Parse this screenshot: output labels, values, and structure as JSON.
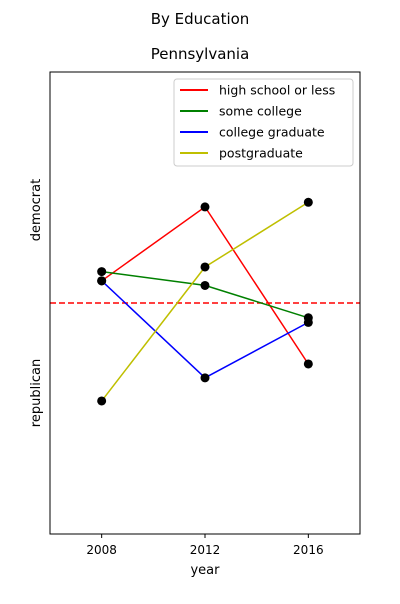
{
  "chart_data": {
    "type": "line",
    "suptitle": "By Education",
    "title": "Pennsylvania",
    "xlabel": "year",
    "ylabel_top": "democrat",
    "ylabel_bottom": "republican",
    "x": [
      2008,
      2012,
      2016
    ],
    "xticks": [
      "2008",
      "2012",
      "2016"
    ],
    "xlim": [
      2006,
      2018
    ],
    "ylim": [
      -0.25,
      0.25
    ],
    "reference_line": {
      "y": 0,
      "color": "#ff0000",
      "style": "dashed"
    },
    "legend_position": "upper-right",
    "grid": false,
    "series": [
      {
        "name": "high school or less",
        "color": "#ff0000",
        "values": [
          0.024,
          0.104,
          -0.066
        ]
      },
      {
        "name": "some college",
        "color": "#008000",
        "values": [
          0.034,
          0.019,
          -0.016
        ]
      },
      {
        "name": "college graduate",
        "color": "#0000ff",
        "values": [
          0.024,
          -0.081,
          -0.021
        ]
      },
      {
        "name": "postgraduate",
        "color": "#bfbf00",
        "values": [
          -0.106,
          0.039,
          0.109
        ]
      }
    ]
  }
}
